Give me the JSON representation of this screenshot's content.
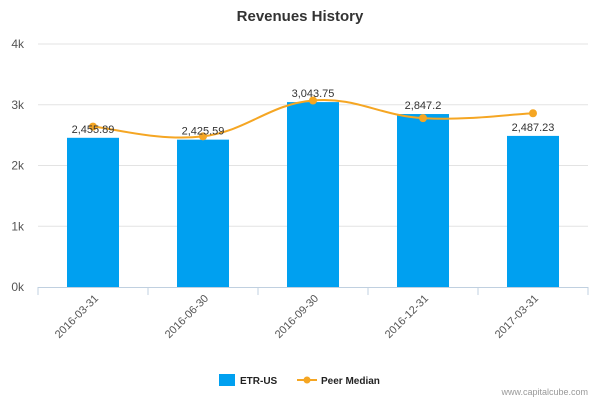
{
  "chart_data": {
    "type": "bar",
    "title": "Revenues History",
    "categories": [
      "2016-03-31",
      "2016-06-30",
      "2016-09-30",
      "2016-12-31",
      "2017-03-31"
    ],
    "series": [
      {
        "name": "ETR-US",
        "type": "bar",
        "color": "#00a0f0",
        "values": [
          2455.89,
          2425.59,
          3043.75,
          2847.2,
          2487.23
        ],
        "labels": [
          "2,455.89",
          "2,425.59",
          "3,043.75",
          "2,847.2",
          "2,487.23"
        ]
      },
      {
        "name": "Peer Median",
        "type": "line",
        "color": "#f5a623",
        "values": [
          2640,
          2480,
          3070,
          2780,
          2860
        ]
      }
    ],
    "ylim": [
      0,
      4000
    ],
    "yticks": [
      {
        "value": 0,
        "label": "0k"
      },
      {
        "value": 1000,
        "label": "1k"
      },
      {
        "value": 2000,
        "label": "2k"
      },
      {
        "value": 3000,
        "label": "3k"
      },
      {
        "value": 4000,
        "label": "4k"
      }
    ],
    "grid": true,
    "legend_position": "bottom-center"
  },
  "footer": {
    "credit": "www.capitalcube.com"
  }
}
